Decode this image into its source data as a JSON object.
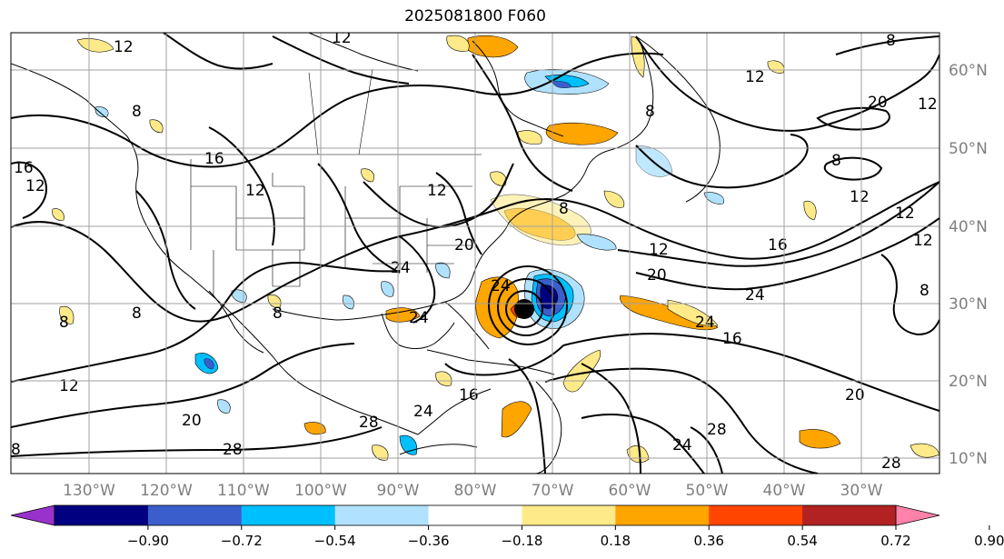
{
  "title": "2025081800 F060",
  "lon_labels": [
    "130°W",
    "120°W",
    "110°W",
    "100°W",
    "90°W",
    "80°W",
    "70°W",
    "60°W",
    "50°W",
    "40°W",
    "30°W"
  ],
  "lat_labels": [
    "60°N",
    "50°N",
    "40°N",
    "30°N",
    "20°N",
    "10°N"
  ],
  "colorbar": {
    "colors": [
      "#9932cc",
      "#000080",
      "#3a5fcd",
      "#00bfff",
      "#b0e2ff",
      "#ffffff",
      "#ffea8a",
      "#ffa500",
      "#ff4500",
      "#b22222",
      "#ff82ab"
    ],
    "under_color": "#9932cc",
    "over_color": "#ff82ab",
    "tick_labels": [
      "−0.90",
      "−0.72",
      "−0.54",
      "−0.36",
      "−0.18",
      "0.18",
      "0.36",
      "0.54",
      "0.72",
      "0.90"
    ]
  },
  "contour_labels": [
    "8",
    "12",
    "16",
    "20",
    "24",
    "28"
  ],
  "storm_marker": "tropical-cyclone-center"
}
